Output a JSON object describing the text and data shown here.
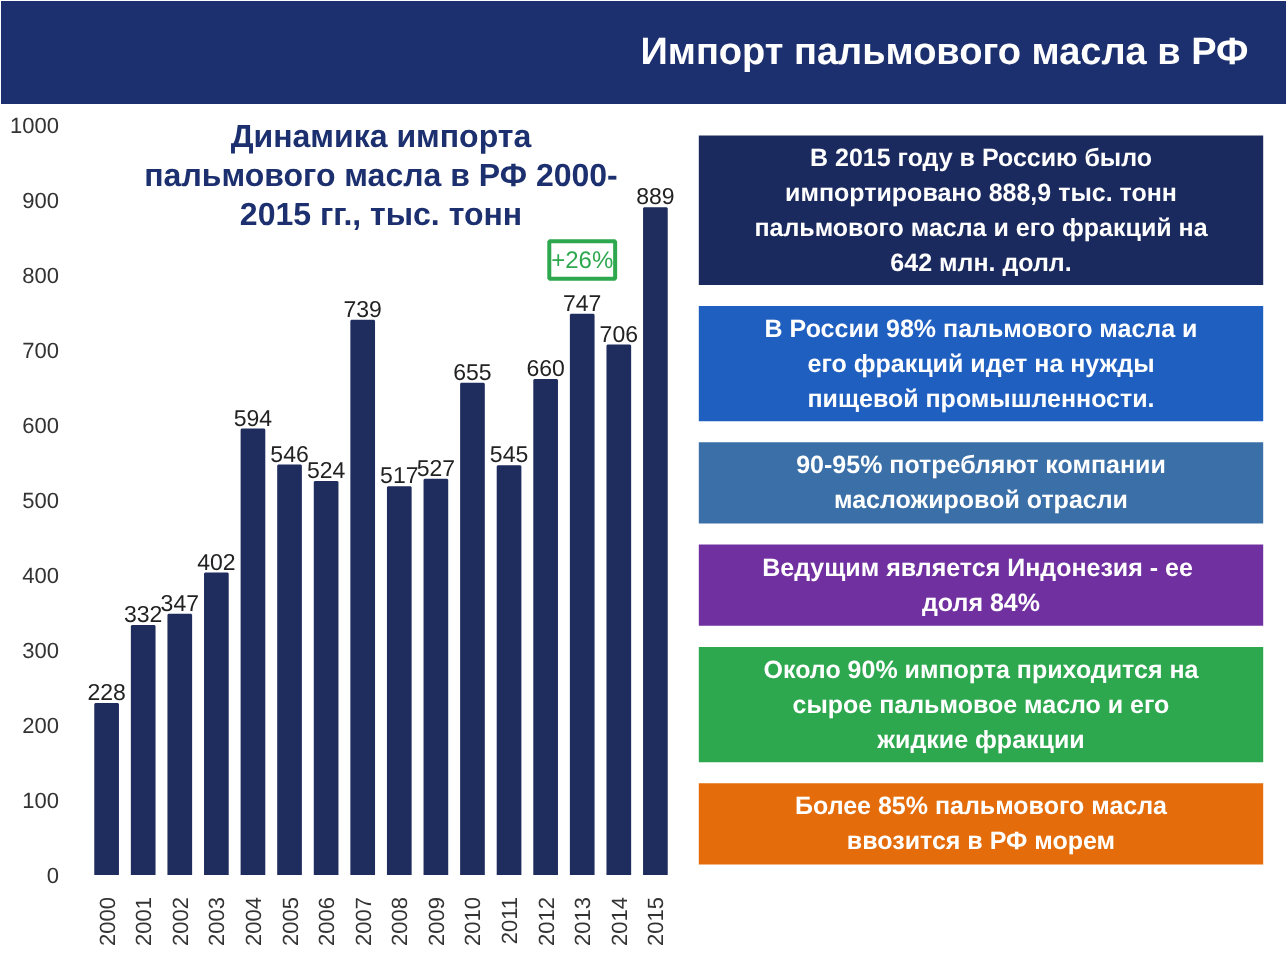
{
  "chart_data": [
    {
      "type": "other",
      "title": "Импорт пальмового масла в РФ",
      "annotations": [
        "В 2015 году в Россию было\nимпортировано 888,9 тыс. тонн\nпальмового масла и его фракций на\n642 млн. долл.",
        "В России 98% пальмового масла и\nего фракций идет на нужды\nпищевой промышленности.",
        "90-95% потребляют компании\nмасложировой отрасли",
        "Ведущим является Индонезия -  ее\nдоля 84%",
        "Около 90% импорта приходится на\nсырое пальмовое масло и его\nжидкие фракции",
        "Более 85% пальмового масла\nввозится в РФ морем"
      ],
      "colors": [
        "#1b2a5e",
        "#1f5fc0",
        "#3a6fa8",
        "#7030a0",
        "#2ea84f",
        "#e46c0a"
      ]
    },
    {
      "type": "bar",
      "title": "Динамика импорта\nпальмового масла в РФ 2000-\n2015 гг., тыс. тонн",
      "categories": [
        "2000",
        "2001",
        "2002",
        "2003",
        "2004",
        "2005",
        "2006",
        "2007",
        "2008",
        "2009",
        "2010",
        "2011",
        "2012",
        "2013",
        "2014",
        "2015"
      ],
      "values": [
        228,
        332,
        347,
        402,
        594,
        546,
        524,
        739,
        517,
        527,
        655,
        545,
        660,
        747,
        706,
        889
      ],
      "color": "#1f2d5e",
      "ylim": [
        0,
        1000
      ],
      "yticks": [
        0,
        100,
        200,
        300,
        400,
        500,
        600,
        700,
        800,
        900,
        1000
      ],
      "grid": false,
      "data_labels": true,
      "annotations": [
        "+26%"
      ]
    }
  ]
}
